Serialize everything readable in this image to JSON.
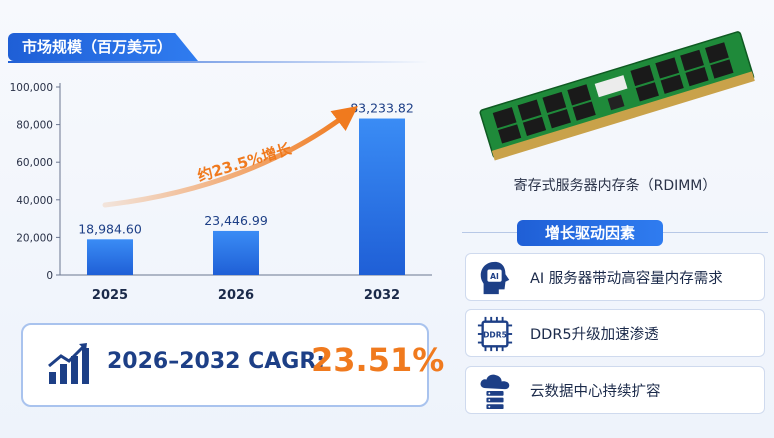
{
  "header": {
    "title": "市场规模（百万美元）"
  },
  "chart_data": {
    "type": "bar",
    "categories": [
      "2025",
      "2026",
      "2032"
    ],
    "values": [
      18984.6,
      23446.99,
      83233.82
    ],
    "value_labels": [
      "18,984.60",
      "23,446.99",
      "83,233.82"
    ],
    "ylim": [
      0,
      100000
    ],
    "yticks": [
      0,
      20000,
      40000,
      60000,
      80000,
      100000
    ],
    "ytick_labels": [
      "0",
      "20,000",
      "40,000",
      "60,000",
      "80,000",
      "100,000"
    ],
    "grid": false,
    "bar_color": "#2a78ea",
    "annotation": {
      "text": "约23.5%增长",
      "color": "#f07a1e"
    }
  },
  "cagr": {
    "label": "2026–2032 CAGR:",
    "value": "23.51%"
  },
  "product": {
    "caption": "寄存式服务器内存条（RDIMM）"
  },
  "drivers": {
    "title": "增长驱动因素",
    "items": [
      {
        "label": "AI 服务器带动高容量内存需求",
        "icon": "ai-head-icon",
        "badge": "AI"
      },
      {
        "label": "DDR5升级加速渗透",
        "icon": "ddr5-chip-icon",
        "badge": "DDR5"
      },
      {
        "label": "云数据中心持续扩容",
        "icon": "cloud-server-icon",
        "badge": ""
      }
    ]
  },
  "colors": {
    "accent": "#1f5fd6",
    "highlight": "#f07a1e",
    "navy": "#1d3f86"
  }
}
